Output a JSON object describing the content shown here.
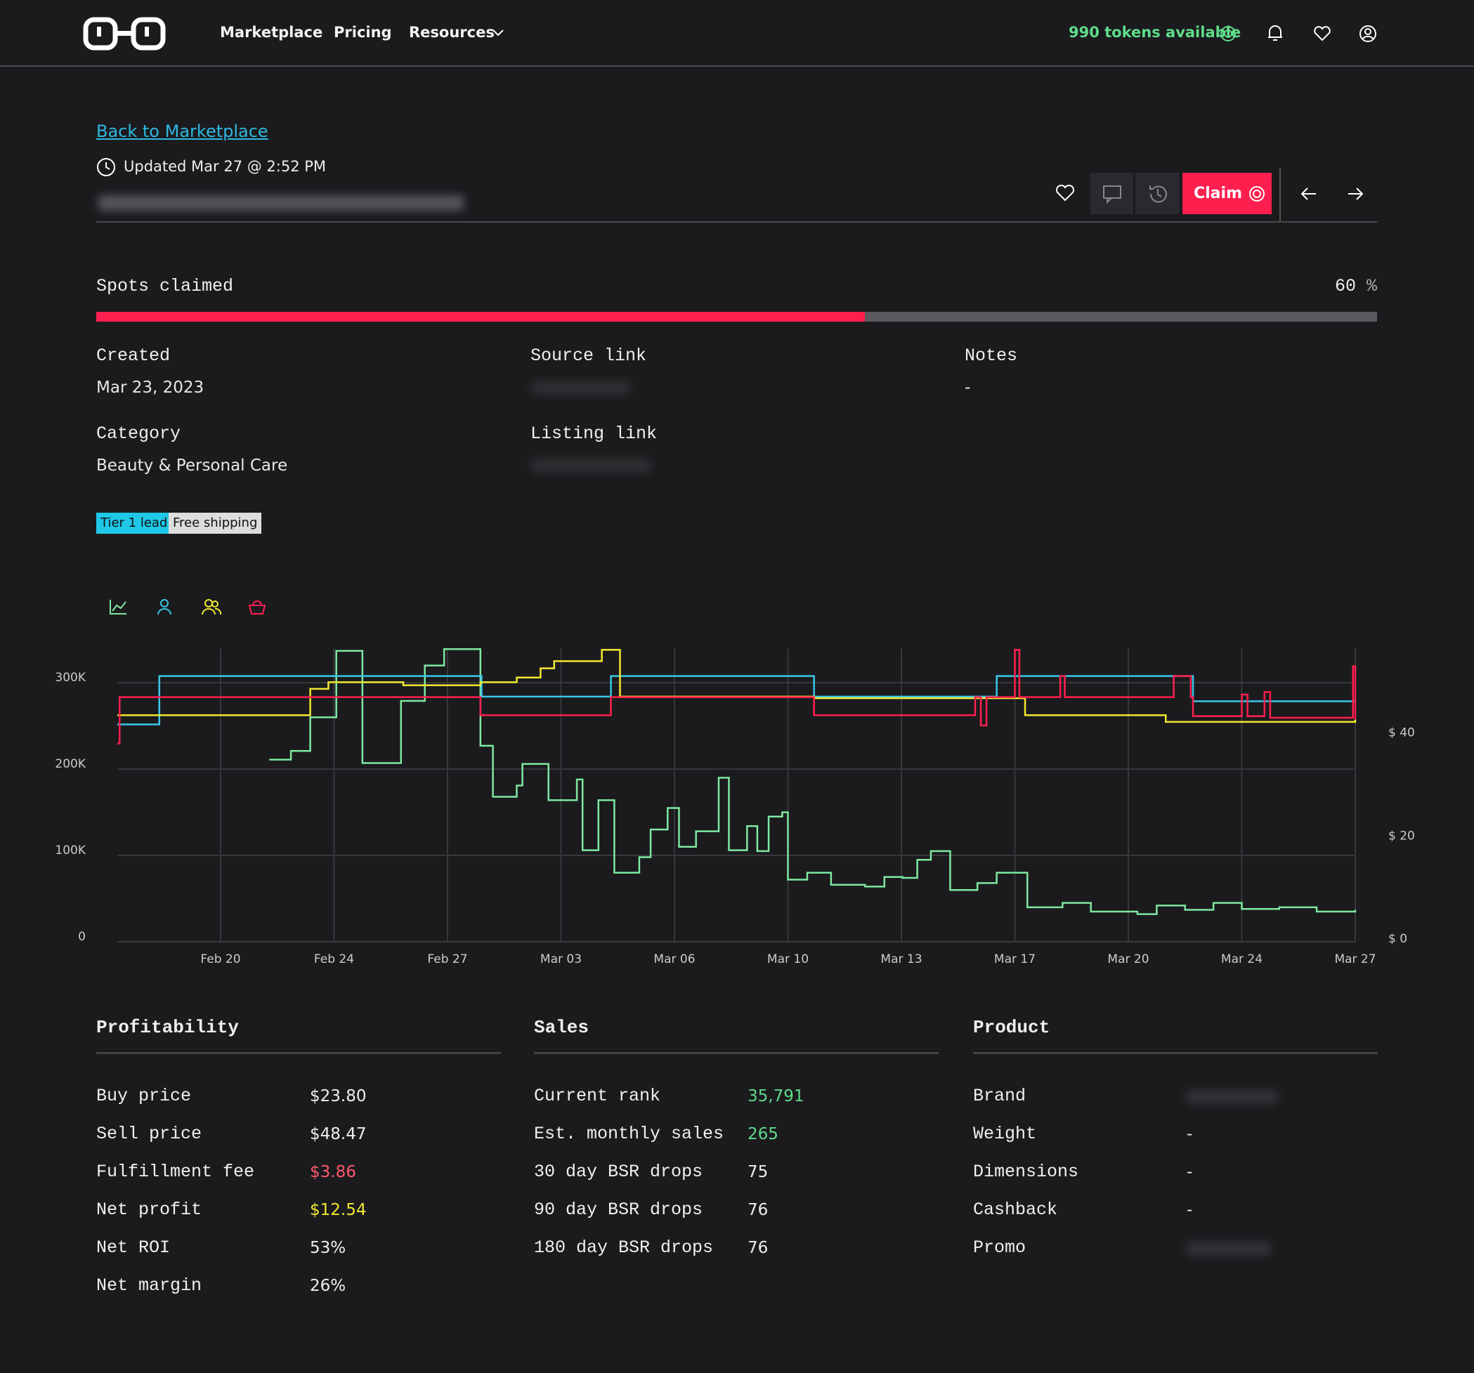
{
  "nav": {
    "links": [
      "Marketplace",
      "Pricing",
      "Resources"
    ],
    "tokens": "990 tokens available"
  },
  "header": {
    "back": "Back to Marketplace",
    "updated": "Updated Mar 27 @ 2:52 PM",
    "claim": "Claim"
  },
  "spots": {
    "label": "Spots claimed",
    "value": 60,
    "unit": "%"
  },
  "details": [
    {
      "label": "Created",
      "value": "Mar 23, 2023"
    },
    {
      "label": "Source link"
    },
    {
      "label": "Notes",
      "value": "-"
    },
    {
      "label": "Category",
      "value": "Beauty & Personal Care"
    },
    {
      "label": "Listing link"
    }
  ],
  "tags": [
    "Tier 1 lead",
    "Free shipping"
  ],
  "chart_data": {
    "type": "line",
    "step": true,
    "grid": true,
    "xlim": [
      -0.91,
      10
    ],
    "xticks": [
      {
        "value": 0,
        "label": "Feb 20"
      },
      {
        "value": 1,
        "label": "Feb 24"
      },
      {
        "value": 2,
        "label": "Feb 27"
      },
      {
        "value": 3,
        "label": "Mar 03"
      },
      {
        "value": 4,
        "label": "Mar 06"
      },
      {
        "value": 5,
        "label": "Mar 10"
      },
      {
        "value": 6,
        "label": "Mar 13"
      },
      {
        "value": 7,
        "label": "Mar 17"
      },
      {
        "value": 8,
        "label": "Mar 20"
      },
      {
        "value": 9,
        "label": "Mar 24"
      },
      {
        "value": 10,
        "label": "Mar 27"
      }
    ],
    "ylim": [
      0,
      340000
    ],
    "yticks": [
      0,
      {
        "value": 100000,
        "label": "100K"
      },
      {
        "value": 200000,
        "label": "200K"
      },
      {
        "value": 300000,
        "label": "300K"
      }
    ],
    "y2lim": [
      0,
      57
    ],
    "y2ticks": [
      {
        "value": 0,
        "label": "$ 0"
      },
      {
        "value": 20,
        "label": "$ 20"
      },
      {
        "value": 40,
        "label": "$ 40"
      }
    ],
    "series": [
      {
        "color": "#7ee8a0",
        "axis": "y",
        "x": [
          0.43,
          0.62,
          0.79,
          1.02,
          1.25,
          1.59,
          1.8,
          1.97,
          2.29,
          2.4,
          2.61,
          2.66,
          2.89,
          3.14,
          3.19,
          3.33,
          3.47,
          3.69,
          3.79,
          3.94,
          4.04,
          4.19,
          4.39,
          4.48,
          4.64,
          4.73,
          4.83,
          4.95,
          5.0,
          5.17,
          5.38,
          5.68,
          5.85,
          6.01,
          6.14,
          6.26,
          6.43,
          6.67,
          6.84,
          7.11,
          7.42,
          7.67,
          8.08,
          8.25,
          8.5,
          8.75,
          9.0,
          9.33,
          9.66,
          10.0
        ],
        "values": [
          211000,
          221000,
          260000,
          337000,
          207000,
          279000,
          320000,
          339000,
          227000,
          168000,
          181000,
          206000,
          164000,
          188000,
          106000,
          164000,
          80000,
          98000,
          130000,
          155000,
          110000,
          128000,
          190000,
          106000,
          134000,
          105000,
          145000,
          150000,
          72000,
          80000,
          66000,
          64000,
          75000,
          74000,
          95000,
          105000,
          60000,
          68000,
          80000,
          40000,
          45000,
          35000,
          32000,
          42000,
          37000,
          45000,
          38000,
          40000,
          35000,
          37000
        ]
      },
      {
        "color": "#38c8e8",
        "axis": "y2",
        "x": [
          -0.91,
          -0.54,
          2.3,
          3.44,
          5.23,
          6.84,
          8.57,
          10.0
        ],
        "values": [
          42.2,
          51.6,
          47.6,
          51.6,
          47.6,
          51.6,
          46.7,
          46.7
        ]
      },
      {
        "color": "#f2e830",
        "axis": "y2",
        "x": [
          -0.91,
          0.79,
          0.95,
          1.61,
          2.29,
          2.61,
          2.82,
          2.94,
          3.36,
          3.52,
          5.23,
          7.09,
          8.33,
          10.0
        ],
        "values": [
          44.0,
          49.1,
          50.4,
          49.8,
          50.4,
          51.3,
          53.1,
          54.5,
          56.7,
          47.6,
          47.3,
          44.0,
          42.7,
          43.1
        ]
      },
      {
        "color": "#ff1f4f",
        "axis": "y2",
        "x": [
          -0.91,
          -0.89,
          2.29,
          3.44,
          5.23,
          6.65,
          6.7,
          6.75,
          7.0,
          7.04,
          7.4,
          7.44,
          8.4,
          8.55,
          8.57,
          9.0,
          9.05,
          9.2,
          9.25,
          9.6,
          9.98,
          10.0
        ],
        "values": [
          38.5,
          47.5,
          44.0,
          47.5,
          44.0,
          47.5,
          42.0,
          47.5,
          56.7,
          47.5,
          51.6,
          47.5,
          51.6,
          47.5,
          43.8,
          48.0,
          43.8,
          48.5,
          43.5,
          43.5,
          53.5,
          43.1
        ]
      }
    ]
  },
  "sections": [
    {
      "title": "Profitability",
      "rows": [
        [
          "Buy price",
          "$23.80"
        ],
        [
          "Sell price",
          "$48.47"
        ],
        [
          "Fulfillment fee",
          "$3.86"
        ],
        [
          "Net profit",
          "$12.54"
        ],
        [
          "Net ROI",
          "53%"
        ],
        [
          "Net margin",
          "26%"
        ]
      ]
    },
    {
      "title": "Sales",
      "rows": [
        [
          "Current rank",
          "35,791"
        ],
        [
          "Est. monthly sales",
          "265"
        ],
        [
          "30 day BSR drops",
          "75"
        ],
        [
          "90 day BSR drops",
          "76"
        ],
        [
          "180 day BSR drops",
          "76"
        ]
      ]
    },
    {
      "title": "Product",
      "rows": [
        [
          "Brand"
        ],
        [
          "Weight",
          "-"
        ],
        [
          "Dimensions",
          "-"
        ],
        [
          "Cashback",
          "-"
        ],
        [
          "Promo"
        ]
      ]
    }
  ]
}
